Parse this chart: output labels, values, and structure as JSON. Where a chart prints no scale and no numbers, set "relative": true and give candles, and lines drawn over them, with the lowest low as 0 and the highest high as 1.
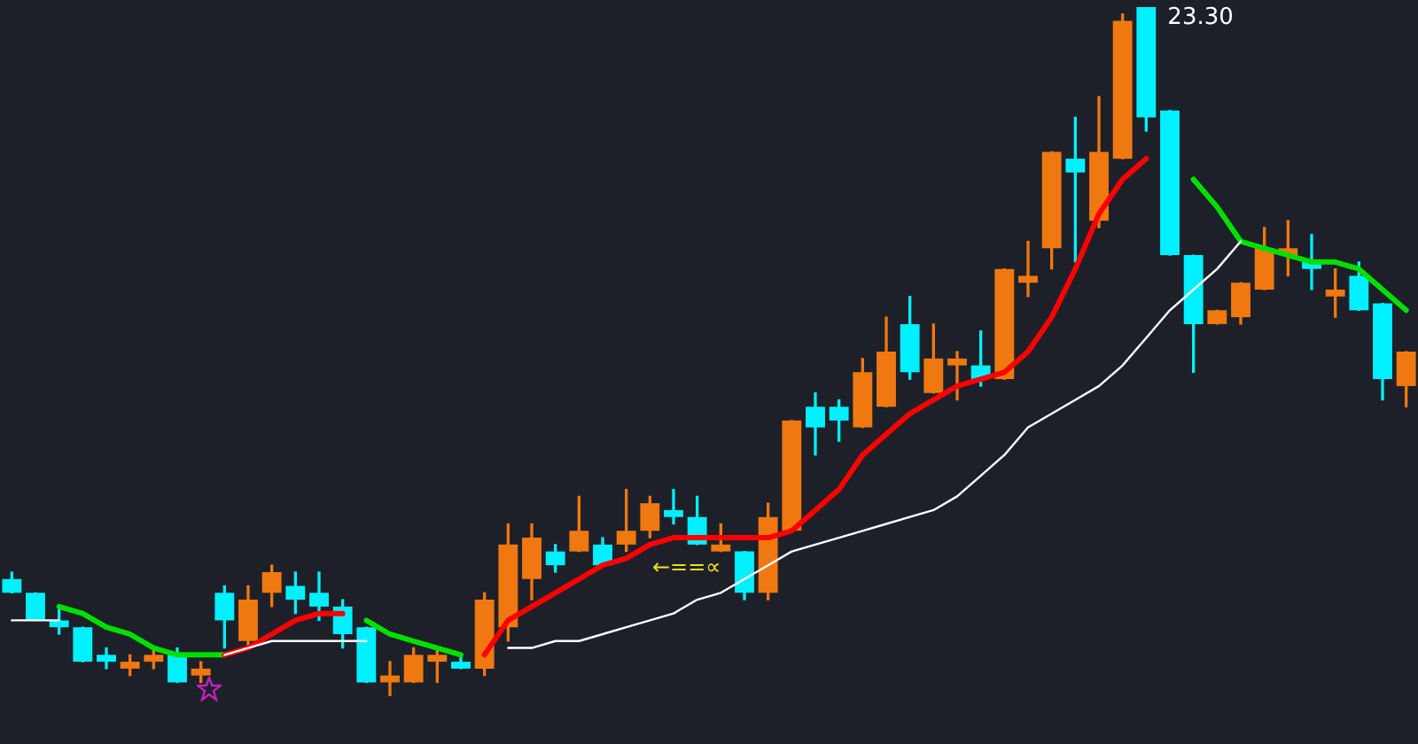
{
  "chart_data": {
    "type": "candlestick",
    "relative": true,
    "categories": [
      null,
      null,
      null,
      null,
      null,
      null,
      null,
      null,
      null,
      null,
      null,
      null,
      null,
      null,
      null,
      null,
      null,
      null,
      null,
      null,
      null,
      null,
      null,
      null,
      null,
      null,
      null,
      null,
      null,
      null,
      null,
      null,
      null,
      null,
      null,
      null,
      null,
      null,
      null,
      null,
      null,
      null,
      null,
      null,
      null,
      null,
      null,
      null,
      null,
      null,
      null,
      null,
      null,
      null,
      null,
      null,
      null,
      null,
      null,
      null
    ],
    "ohlc": [
      [
        0.17,
        0.18,
        0.15,
        0.15
      ],
      [
        0.15,
        0.15,
        0.11,
        0.11
      ],
      [
        0.11,
        0.13,
        0.09,
        0.1
      ],
      [
        0.1,
        0.1,
        0.05,
        0.05
      ],
      [
        0.06,
        0.07,
        0.04,
        0.05
      ],
      [
        0.04,
        0.06,
        0.03,
        0.05
      ],
      [
        0.05,
        0.07,
        0.04,
        0.06
      ],
      [
        0.06,
        0.07,
        0.02,
        0.02
      ],
      [
        0.03,
        0.05,
        0.02,
        0.04
      ],
      [
        0.15,
        0.16,
        0.07,
        0.11
      ],
      [
        0.08,
        0.16,
        0.07,
        0.14
      ],
      [
        0.15,
        0.19,
        0.13,
        0.18
      ],
      [
        0.16,
        0.18,
        0.12,
        0.14
      ],
      [
        0.15,
        0.18,
        0.11,
        0.13
      ],
      [
        0.13,
        0.14,
        0.07,
        0.09
      ],
      [
        0.1,
        0.1,
        0.02,
        0.02
      ],
      [
        0.02,
        0.05,
        0,
        0.03
      ],
      [
        0.02,
        0.07,
        0.02,
        0.06
      ],
      [
        0.05,
        0.07,
        0.02,
        0.06
      ],
      [
        0.05,
        0.06,
        0.04,
        0.04
      ],
      [
        0.04,
        0.15,
        0.03,
        0.14
      ],
      [
        0.1,
        0.25,
        0.08,
        0.22
      ],
      [
        0.17,
        0.25,
        0.14,
        0.23
      ],
      [
        0.21,
        0.22,
        0.18,
        0.19
      ],
      [
        0.21,
        0.29,
        0.21,
        0.24
      ],
      [
        0.22,
        0.23,
        0.19,
        0.19
      ],
      [
        0.22,
        0.3,
        0.21,
        0.24
      ],
      [
        0.24,
        0.29,
        0.23,
        0.28
      ],
      [
        0.27,
        0.3,
        0.25,
        0.26
      ],
      [
        0.26,
        0.29,
        0.22,
        0.22
      ],
      [
        0.21,
        0.25,
        0.21,
        0.22
      ],
      [
        0.21,
        0.21,
        0.14,
        0.15
      ],
      [
        0.15,
        0.28,
        0.14,
        0.26
      ],
      [
        0.24,
        0.4,
        0.24,
        0.4
      ],
      [
        0.42,
        0.44,
        0.35,
        0.39
      ],
      [
        0.42,
        0.43,
        0.37,
        0.4
      ],
      [
        0.39,
        0.49,
        0.39,
        0.47
      ],
      [
        0.42,
        0.55,
        0.42,
        0.5
      ],
      [
        0.54,
        0.58,
        0.46,
        0.47
      ],
      [
        0.44,
        0.54,
        0.44,
        0.49
      ],
      [
        0.48,
        0.5,
        0.43,
        0.49
      ],
      [
        0.48,
        0.53,
        0.45,
        0.46
      ],
      [
        0.46,
        0.62,
        0.46,
        0.62
      ],
      [
        0.6,
        0.66,
        0.58,
        0.61
      ],
      [
        0.65,
        0.79,
        0.62,
        0.79
      ],
      [
        0.78,
        0.84,
        0.63,
        0.76
      ],
      [
        0.69,
        0.87,
        0.68,
        0.79
      ],
      [
        0.78,
        0.99,
        0.78,
        0.98
      ],
      [
        1,
        1,
        0.82,
        0.84
      ],
      [
        0.85,
        0.85,
        0.64,
        0.64
      ],
      [
        0.64,
        0.64,
        0.47,
        0.54
      ],
      [
        0.54,
        0.56,
        0.54,
        0.56
      ],
      [
        0.55,
        0.6,
        0.54,
        0.6
      ],
      [
        0.59,
        0.68,
        0.59,
        0.65
      ],
      [
        0.64,
        0.69,
        0.61,
        0.65
      ],
      [
        0.63,
        0.67,
        0.59,
        0.62
      ],
      [
        0.58,
        0.62,
        0.55,
        0.59
      ],
      [
        0.61,
        0.63,
        0.56,
        0.56
      ],
      [
        0.57,
        0.57,
        0.43,
        0.46
      ],
      [
        0.45,
        0.5,
        0.42,
        0.5
      ]
    ],
    "colors": [
      "#00f0ff",
      "#00f0ff",
      "#00f0ff",
      "#00f0ff",
      "#00f0ff",
      "#f07810",
      "#f07810",
      "#00f0ff",
      "#f07810",
      "#00f0ff",
      "#f07810",
      "#f07810",
      "#00f0ff",
      "#00f0ff",
      "#00f0ff",
      "#00f0ff",
      "#f07810",
      "#f07810",
      "#f07810",
      "#00f0ff",
      "#f07810",
      "#f07810",
      "#f07810",
      "#00f0ff",
      "#f07810",
      "#00f0ff",
      "#f07810",
      "#f07810",
      "#00f0ff",
      "#00f0ff",
      "#f07810",
      "#00f0ff",
      "#f07810",
      "#f07810",
      "#00f0ff",
      "#00f0ff",
      "#f07810",
      "#f07810",
      "#00f0ff",
      "#f07810",
      "#f07810",
      "#00f0ff",
      "#f07810",
      "#f07810",
      "#f07810",
      "#00f0ff",
      "#f07810",
      "#f07810",
      "#00f0ff",
      "#00f0ff",
      "#00f0ff",
      "#f07810",
      "#f07810",
      "#f07810",
      "#f07810",
      "#00f0ff",
      "#f07810",
      "#00f0ff",
      "#00f0ff",
      "#f07810"
    ],
    "series": [
      {
        "type": "line",
        "color": "#ffffff",
        "values": [
          0.11,
          0.11,
          0.11,
          null,
          null,
          null,
          null,
          null,
          null,
          0.06,
          0.07,
          0.08,
          0.08,
          0.08,
          0.08,
          0.08,
          null,
          null,
          null,
          null,
          null,
          0.07,
          0.07,
          0.08,
          0.08,
          0.09,
          0.1,
          0.11,
          0.12,
          0.14,
          0.15,
          0.17,
          0.19,
          0.21,
          0.22,
          0.23,
          0.24,
          0.25,
          0.26,
          0.27,
          0.29,
          0.32,
          0.35,
          0.39,
          0.41,
          0.43,
          0.45,
          0.48,
          0.52,
          0.56,
          0.59,
          0.62,
          0.66,
          null,
          null,
          null,
          null,
          null,
          null,
          null
        ]
      },
      {
        "type": "line",
        "color": "#ff0000",
        "values": [
          null,
          null,
          null,
          null,
          null,
          null,
          null,
          null,
          null,
          0.06,
          0.07,
          0.09,
          0.11,
          0.12,
          0.12,
          null,
          null,
          null,
          null,
          null,
          0.06,
          0.11,
          0.13,
          0.15,
          0.17,
          0.19,
          0.2,
          0.22,
          0.23,
          0.23,
          0.23,
          0.23,
          0.23,
          0.24,
          0.27,
          0.3,
          0.35,
          0.38,
          0.41,
          0.43,
          0.45,
          0.46,
          0.47,
          0.5,
          0.55,
          0.62,
          0.7,
          0.75,
          0.78,
          null,
          null,
          null,
          null,
          null,
          null,
          null,
          null,
          null,
          null,
          null
        ]
      },
      {
        "type": "line",
        "color": "#00e000",
        "values": [
          null,
          null,
          0.13,
          0.12,
          0.1,
          0.09,
          0.07,
          0.06,
          0.06,
          0.06,
          null,
          null,
          null,
          null,
          null,
          0.11,
          0.09,
          0.08,
          0.07,
          0.06,
          null,
          null,
          null,
          null,
          null,
          null,
          null,
          null,
          null,
          null,
          null,
          null,
          null,
          null,
          null,
          null,
          null,
          null,
          null,
          null,
          null,
          null,
          null,
          null,
          null,
          null,
          null,
          null,
          null,
          null,
          0.75,
          0.71,
          0.66,
          0.65,
          0.64,
          0.63,
          0.63,
          0.62,
          0.59,
          0.56
        ]
      }
    ],
    "annotations": [
      "23.30",
      "←==∝"
    ]
  }
}
